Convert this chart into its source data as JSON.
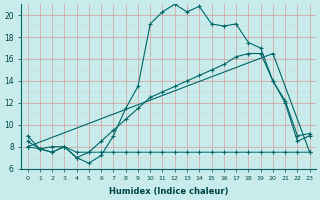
{
  "xlabel": "Humidex (Indice chaleur)",
  "background_color": "#c8ecec",
  "grid_color_major": "#c0a0a0",
  "grid_color_minor": "#d8d0d0",
  "line_color": "#006666",
  "xlim": [
    -0.5,
    23.5
  ],
  "ylim": [
    6,
    21
  ],
  "yticks": [
    6,
    8,
    10,
    12,
    14,
    16,
    18,
    20
  ],
  "xticks": [
    0,
    1,
    2,
    3,
    4,
    5,
    6,
    7,
    8,
    9,
    10,
    11,
    12,
    13,
    14,
    15,
    16,
    17,
    18,
    19,
    20,
    21,
    22,
    23
  ],
  "series1_x": [
    0,
    1,
    2,
    3,
    4,
    5,
    6,
    7,
    8,
    9,
    10,
    11,
    12,
    13,
    14,
    15,
    16,
    17,
    18,
    19,
    20,
    21,
    22,
    23
  ],
  "series1_y": [
    9.0,
    7.8,
    7.5,
    8.0,
    7.0,
    6.5,
    7.2,
    9.0,
    11.5,
    13.5,
    19.2,
    20.3,
    21.0,
    20.3,
    20.8,
    19.2,
    19.0,
    19.2,
    17.5,
    17.0,
    14.0,
    12.0,
    8.5,
    9.0
  ],
  "series2_x": [
    0,
    1,
    2,
    3,
    4,
    5,
    6,
    7,
    8,
    9,
    10,
    11,
    12,
    13,
    14,
    15,
    16,
    17,
    18,
    19,
    20,
    21,
    22,
    23
  ],
  "series2_y": [
    8.0,
    7.8,
    7.5,
    8.0,
    7.5,
    7.5,
    7.5,
    7.5,
    7.5,
    7.5,
    7.5,
    7.5,
    7.5,
    7.5,
    7.5,
    7.5,
    7.5,
    7.5,
    7.5,
    7.5,
    7.5,
    7.5,
    7.5,
    7.5
  ],
  "series3_x": [
    0,
    1,
    2,
    3,
    4,
    5,
    6,
    7,
    8,
    9,
    10,
    11,
    12,
    13,
    14,
    15,
    16,
    17,
    18,
    19,
    20,
    21,
    22,
    23
  ],
  "series3_y": [
    8.5,
    7.8,
    8.0,
    8.0,
    7.0,
    7.5,
    8.5,
    9.5,
    10.5,
    11.5,
    12.5,
    13.0,
    13.5,
    14.0,
    14.5,
    15.0,
    15.5,
    16.2,
    16.5,
    16.5,
    14.0,
    12.2,
    9.0,
    9.2
  ],
  "series4_x": [
    0,
    20,
    23
  ],
  "series4_y": [
    8.0,
    16.5,
    7.5
  ]
}
